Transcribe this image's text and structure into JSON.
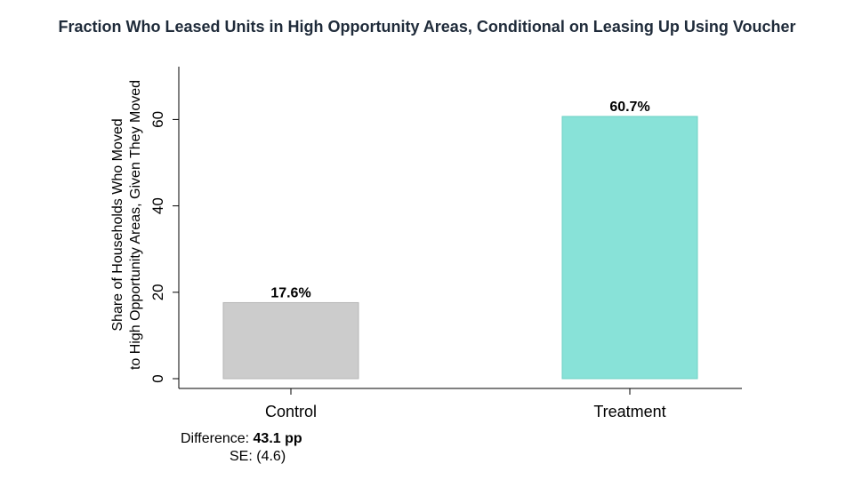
{
  "title": "Fraction Who Leased Units in High Opportunity Areas, Conditional on Leasing Up Using Voucher",
  "chart_data": {
    "type": "bar",
    "title": "Fraction Who Leased Units in High Opportunity Areas, Conditional on Leasing Up Using Voucher",
    "ylabel_line1": "Share of Households Who Moved",
    "ylabel_line2": "to High Opportunity Areas, Given They Moved",
    "xlabel": "",
    "categories": [
      "Control",
      "Treatment"
    ],
    "values": [
      17.6,
      60.7
    ],
    "value_labels": [
      "17.6%",
      "60.7%"
    ],
    "colors": [
      "#cccccc",
      "#88e2d8"
    ],
    "ylim": [
      0,
      72
    ],
    "yticks": [
      0,
      20,
      40,
      60
    ],
    "grid": false
  },
  "annotation": {
    "difference_label": "Difference:",
    "difference_value": "43.1 pp",
    "se_label": "SE:",
    "se_value": "(4.6)"
  }
}
